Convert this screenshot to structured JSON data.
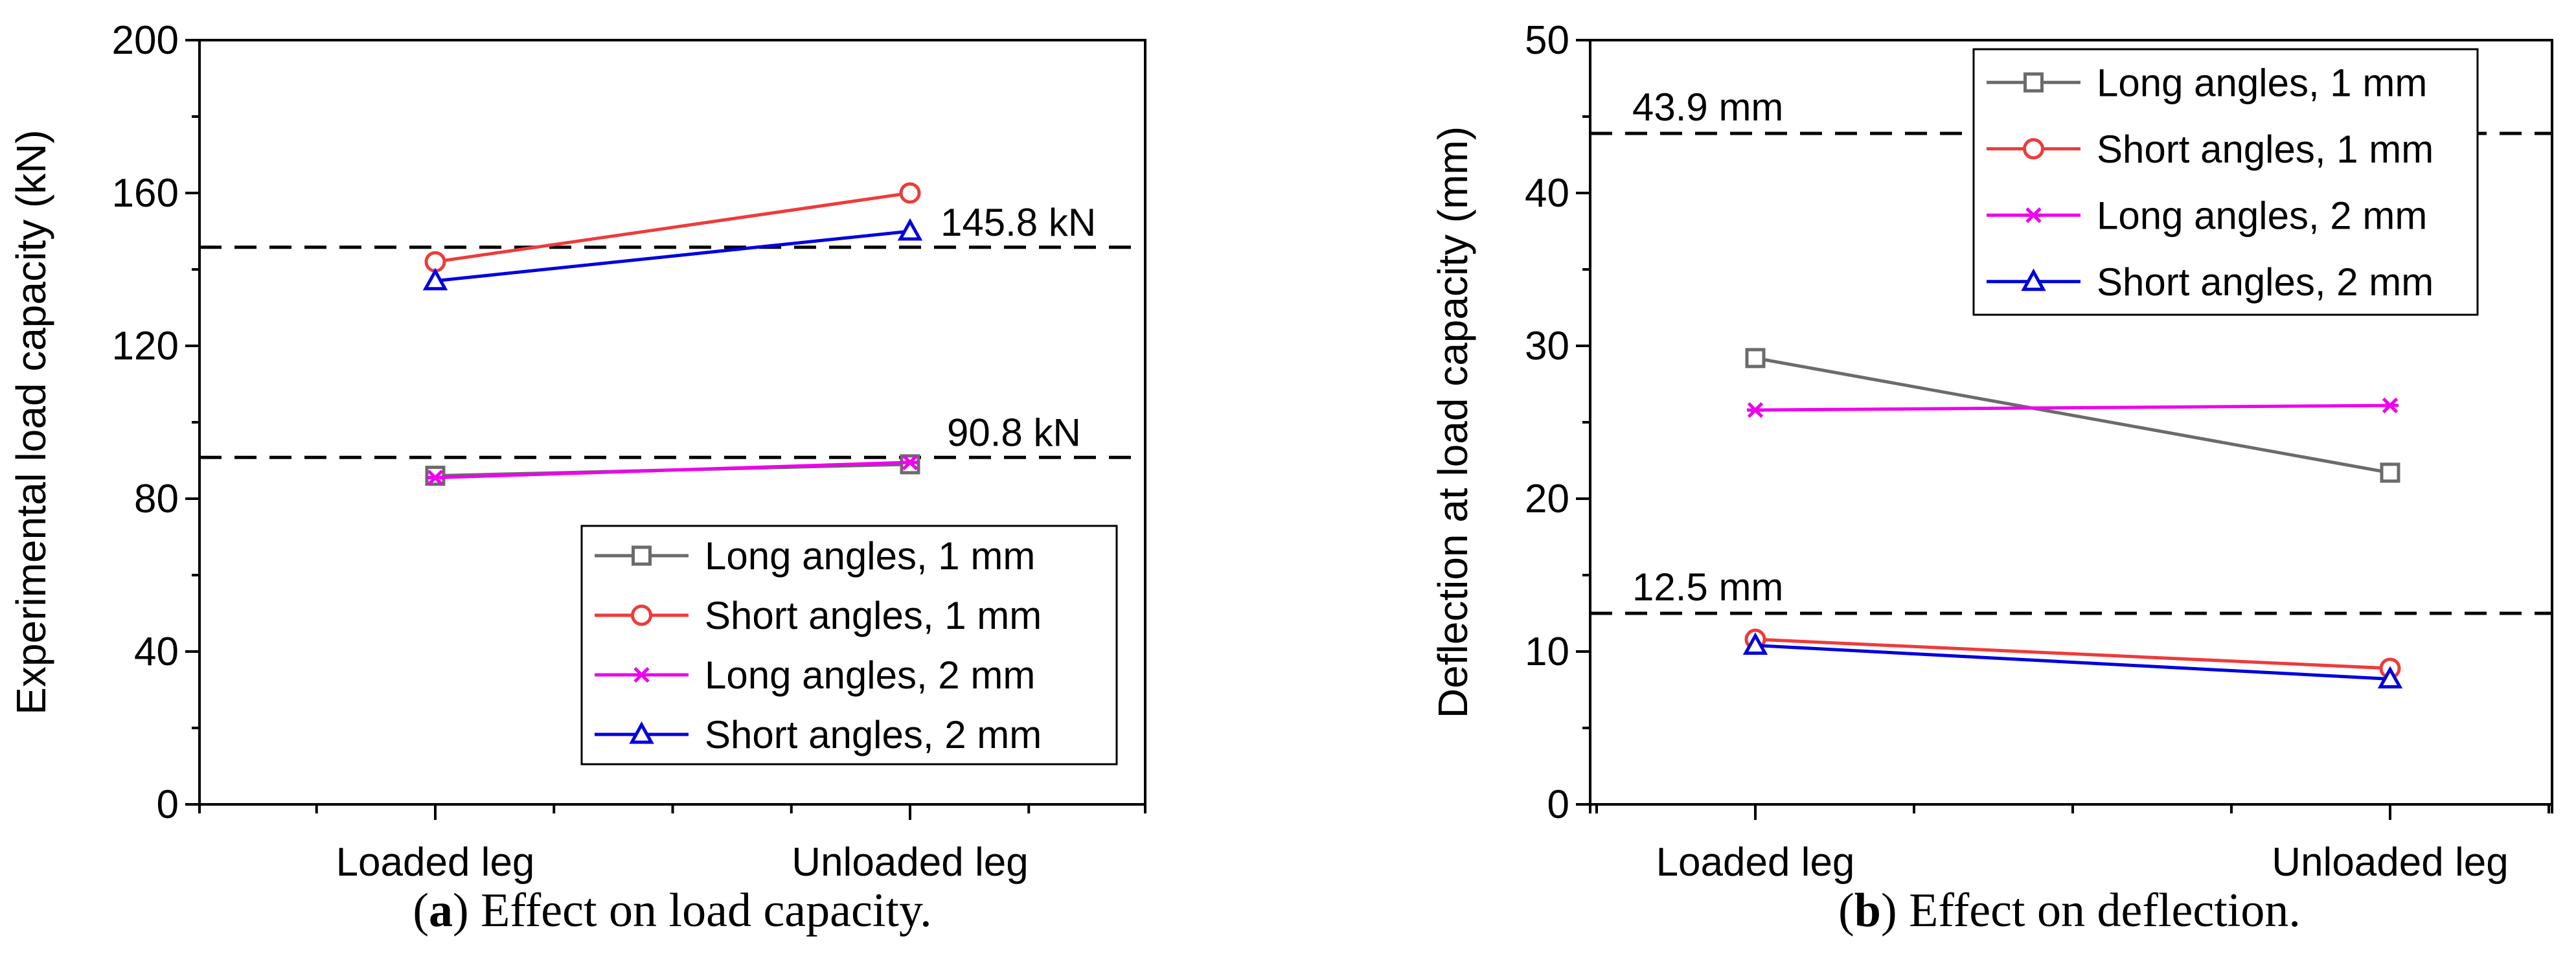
{
  "chart_data": [
    {
      "type": "line",
      "panel_label": "a",
      "caption": "Effect on load capacity.",
      "categories": [
        "Loaded leg",
        "Unloaded leg"
      ],
      "ylabel": "Experimental load capacity (kN)",
      "xlabel": "",
      "ylim": [
        0,
        200
      ],
      "yticks": [
        0,
        40,
        80,
        120,
        160,
        200
      ],
      "grid": false,
      "legend_position": "lower-right",
      "series": [
        {
          "name": "Long angles, 1 mm",
          "marker": "square",
          "color": "#6b6b6b",
          "values": [
            86,
            89
          ]
        },
        {
          "name": "Short angles, 1 mm",
          "marker": "circle",
          "color": "#ee3b3b",
          "values": [
            142,
            160
          ]
        },
        {
          "name": "Long angles, 2 mm",
          "marker": "asterisk",
          "color": "#ee00ee",
          "values": [
            85.5,
            89.5
          ]
        },
        {
          "name": "Short angles, 2 mm",
          "marker": "triangle",
          "color": "#0000dd",
          "values": [
            137,
            150
          ]
        }
      ],
      "reference_lines": [
        {
          "value": 145.8,
          "label": "145.8 kN"
        },
        {
          "value": 90.8,
          "label": "90.8 kN"
        }
      ]
    },
    {
      "type": "line",
      "panel_label": "b",
      "caption": "Effect on deflection.",
      "categories": [
        "Loaded leg",
        "Unloaded leg"
      ],
      "ylabel": "Deflection at load capacity (mm)",
      "xlabel": "",
      "ylim": [
        0,
        50
      ],
      "yticks": [
        0,
        10,
        20,
        30,
        40,
        50
      ],
      "grid": false,
      "legend_position": "top-right",
      "series": [
        {
          "name": "Long angles, 1 mm",
          "marker": "square",
          "color": "#6b6b6b",
          "values": [
            29.2,
            21.7
          ]
        },
        {
          "name": "Short angles, 1 mm",
          "marker": "circle",
          "color": "#ee3b3b",
          "values": [
            10.8,
            8.9
          ]
        },
        {
          "name": "Long angles, 2 mm",
          "marker": "asterisk",
          "color": "#ee00ee",
          "values": [
            25.8,
            26.1
          ]
        },
        {
          "name": "Short angles, 2 mm",
          "marker": "triangle",
          "color": "#0000dd",
          "values": [
            10.4,
            8.2
          ]
        }
      ],
      "reference_lines": [
        {
          "value": 43.9,
          "label": "43.9 mm"
        },
        {
          "value": 12.5,
          "label": "12.5 mm"
        }
      ]
    }
  ]
}
